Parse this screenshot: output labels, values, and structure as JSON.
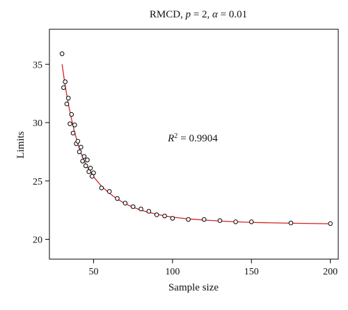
{
  "chart_data": {
    "type": "scatter",
    "title": {
      "method": "RMCD",
      "p_label": "p",
      "p_value": "= 2,",
      "alpha_label": "α",
      "alpha_value": "= 0.01"
    },
    "xlabel": "Sample size",
    "ylabel": "Limits",
    "xlim": [
      22,
      205
    ],
    "ylim": [
      18.3,
      38.0
    ],
    "xticks": [
      50,
      100,
      150,
      200
    ],
    "yticks": [
      20,
      25,
      30,
      35
    ],
    "grid": false,
    "annotation": {
      "r_label": "R",
      "exponent": "2",
      "value": "= 0.9904",
      "x": 97,
      "y": 28.4
    },
    "fit_color": "#d62020",
    "point_color": "#000000",
    "points": [
      {
        "x": 30,
        "y": 35.9
      },
      {
        "x": 31,
        "y": 33.0
      },
      {
        "x": 32,
        "y": 33.5
      },
      {
        "x": 33,
        "y": 31.6
      },
      {
        "x": 34,
        "y": 32.1
      },
      {
        "x": 35,
        "y": 29.9
      },
      {
        "x": 36,
        "y": 30.7
      },
      {
        "x": 37,
        "y": 29.1
      },
      {
        "x": 38,
        "y": 29.8
      },
      {
        "x": 39,
        "y": 28.2
      },
      {
        "x": 40,
        "y": 28.4
      },
      {
        "x": 41,
        "y": 27.5
      },
      {
        "x": 42,
        "y": 27.9
      },
      {
        "x": 43,
        "y": 26.7
      },
      {
        "x": 44,
        "y": 27.1
      },
      {
        "x": 45,
        "y": 26.3
      },
      {
        "x": 46,
        "y": 26.8
      },
      {
        "x": 47,
        "y": 25.8
      },
      {
        "x": 48,
        "y": 26.1
      },
      {
        "x": 49,
        "y": 25.4
      },
      {
        "x": 50,
        "y": 25.7
      },
      {
        "x": 55,
        "y": 24.4
      },
      {
        "x": 60,
        "y": 24.1
      },
      {
        "x": 65,
        "y": 23.5
      },
      {
        "x": 70,
        "y": 23.1
      },
      {
        "x": 75,
        "y": 22.8
      },
      {
        "x": 80,
        "y": 22.6
      },
      {
        "x": 85,
        "y": 22.4
      },
      {
        "x": 90,
        "y": 22.1
      },
      {
        "x": 95,
        "y": 22.0
      },
      {
        "x": 100,
        "y": 21.8
      },
      {
        "x": 110,
        "y": 21.7
      },
      {
        "x": 120,
        "y": 21.7
      },
      {
        "x": 130,
        "y": 21.6
      },
      {
        "x": 140,
        "y": 21.5
      },
      {
        "x": 150,
        "y": 21.5
      },
      {
        "x": 175,
        "y": 21.4
      },
      {
        "x": 200,
        "y": 21.35
      }
    ],
    "fit_curve": {
      "x": [
        30,
        32,
        34,
        36,
        38,
        40,
        42,
        44,
        46,
        48,
        50,
        55,
        60,
        65,
        70,
        75,
        80,
        85,
        90,
        95,
        100,
        110,
        120,
        130,
        140,
        150,
        160,
        175,
        190,
        200
      ],
      "y": [
        35.0,
        33.15,
        31.6,
        30.3,
        29.15,
        28.2,
        27.4,
        26.75,
        26.2,
        25.75,
        25.35,
        24.55,
        23.95,
        23.45,
        23.05,
        22.75,
        22.5,
        22.3,
        22.15,
        22.0,
        21.9,
        21.75,
        21.65,
        21.57,
        21.5,
        21.45,
        21.42,
        21.38,
        21.35,
        21.33
      ]
    }
  }
}
